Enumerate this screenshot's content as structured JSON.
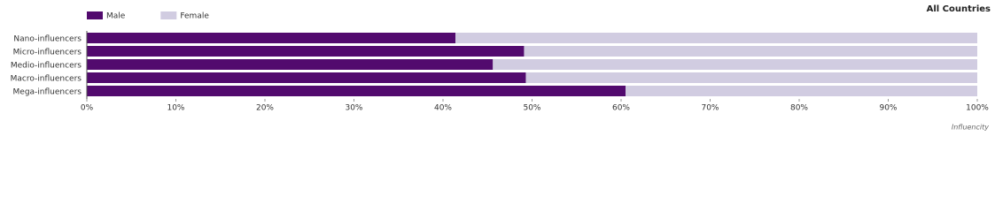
{
  "chart_data": {
    "type": "stacked-barh",
    "title": "All Countries",
    "categories": [
      "Nano-influencers",
      "Micro-influencers",
      "Medio-influencers",
      "Macro-influencers",
      "Mega-influencers"
    ],
    "series": [
      {
        "name": "Male",
        "color": "#520a6e",
        "values": [
          41.4,
          49.1,
          45.6,
          49.3,
          60.5
        ]
      },
      {
        "name": "Female",
        "color": "#d1cce1",
        "values": [
          58.6,
          50.9,
          54.4,
          50.7,
          39.5
        ]
      }
    ],
    "xlim": [
      0,
      100
    ],
    "xticks": [
      {
        "value": 0,
        "label": "0%"
      },
      {
        "value": 10,
        "label": "10%"
      },
      {
        "value": 20,
        "label": "20%"
      },
      {
        "value": 30,
        "label": "30%"
      },
      {
        "value": 40,
        "label": "40%"
      },
      {
        "value": 50,
        "label": "50%"
      },
      {
        "value": 60,
        "label": "60%"
      },
      {
        "value": 70,
        "label": "70%"
      },
      {
        "value": 80,
        "label": "80%"
      },
      {
        "value": 90,
        "label": "90%"
      },
      {
        "value": 100,
        "label": "100%"
      }
    ],
    "legend": "top-left",
    "logo": "Influencity"
  }
}
